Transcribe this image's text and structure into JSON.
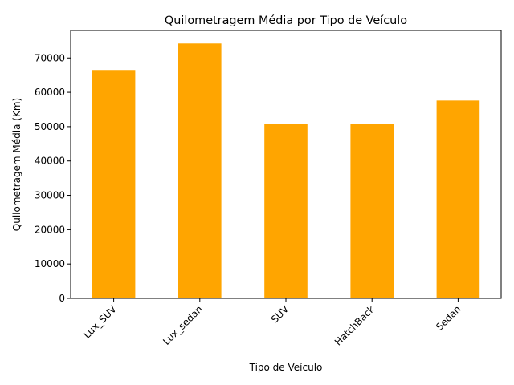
{
  "chart_data": {
    "type": "bar",
    "title": "Quilometragem Média por Tipo de Veículo",
    "xlabel": "Tipo de Veículo",
    "ylabel": "Quilometragem Média (Km)",
    "categories": [
      "Lux_SUV",
      "Lux_sedan",
      "SUV",
      "HatchBack",
      "Sedan"
    ],
    "values": [
      66500,
      74200,
      50700,
      50900,
      57600
    ],
    "ylim": [
      0,
      78000
    ],
    "yticks": [
      0,
      10000,
      20000,
      30000,
      40000,
      50000,
      60000,
      70000
    ],
    "ytick_labels": [
      "0",
      "10000",
      "20000",
      "30000",
      "40000",
      "50000",
      "60000",
      "70000"
    ],
    "bar_color": "#ffa500",
    "grid": false,
    "legend": "none"
  }
}
